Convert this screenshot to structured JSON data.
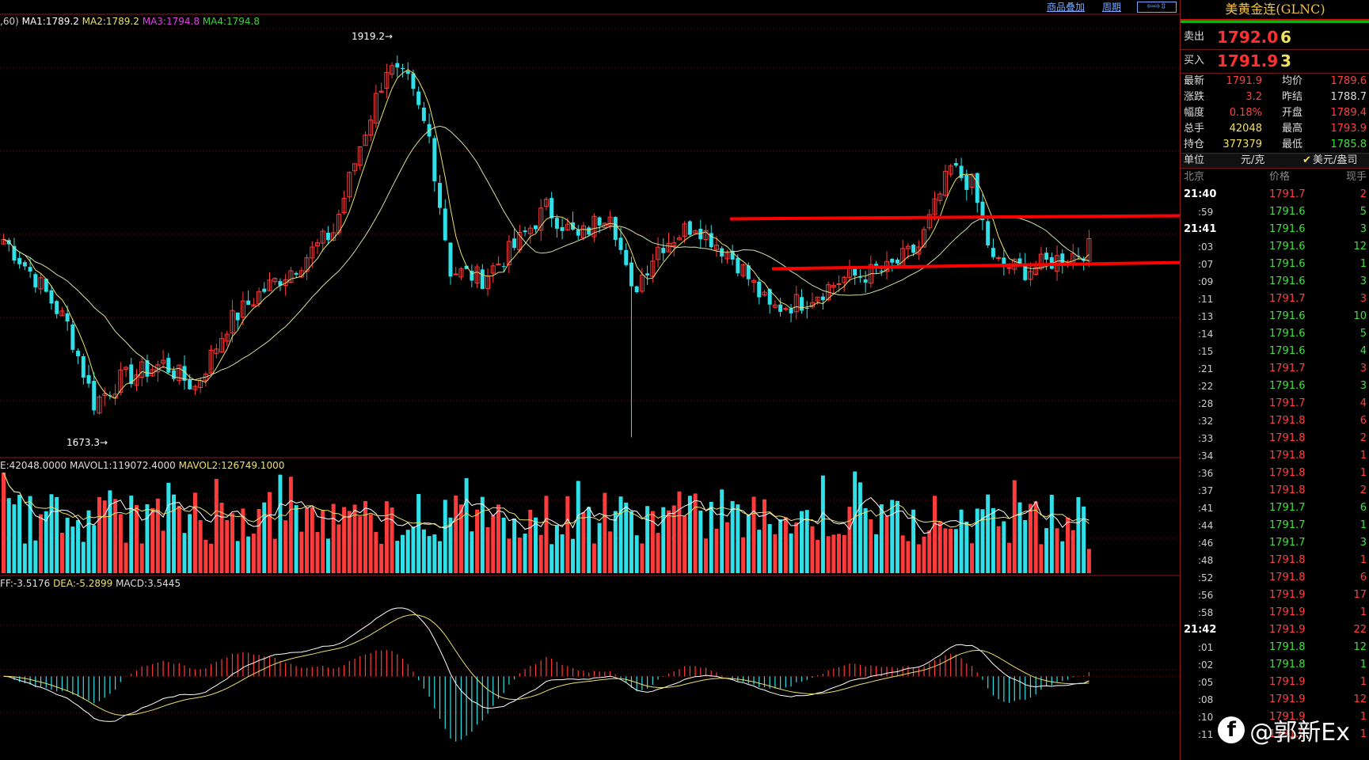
{
  "toolbar": {
    "overlay": "商品叠加",
    "period": "周期"
  },
  "legends": {
    "price": {
      "prefix": ",60)",
      "ma1": "MA1:1789.2",
      "ma2": "MA2:1789.2",
      "ma3": "MA3:1794.8",
      "ma4": "MA4:1794.8"
    },
    "volume": {
      "vol": "E:42048.0000",
      "mavol1": "MAVOL1:119072.4000",
      "mavol2": "MAVOL2:126749.1000"
    },
    "macd": {
      "diff": "FF:-3.5176",
      "dea": "DEA:-5.2899",
      "macd": "MACD:3.5445"
    }
  },
  "colors": {
    "up": "#ff3b3b",
    "down": "#30e0e8",
    "ma1": "#ffffff",
    "ma2": "#e8e070",
    "ma3": "#e040e0",
    "ma4": "#40d040",
    "trend": "#ff0000",
    "grid": "#6a1414"
  },
  "annotations": {
    "high": "1919.2",
    "low": "1673.3"
  },
  "panel": {
    "title": "美黄金连(GLNC)",
    "sell_label": "卖出",
    "sell_price": "1792.0",
    "sell_qty": "6",
    "buy_label": "买入",
    "buy_price": "1791.9",
    "buy_qty": "3",
    "stats": [
      {
        "l1": "最新",
        "v1": "1791.9",
        "c1": "#ff4040",
        "l2": "均价",
        "v2": "1789.6",
        "c2": "#ff4040"
      },
      {
        "l1": "涨跌",
        "v1": "3.2",
        "c1": "#ff4040",
        "l2": "昨结",
        "v2": "1788.7",
        "c2": "#dddddd"
      },
      {
        "l1": "幅度",
        "v1": "0.18%",
        "c1": "#ff4040",
        "l2": "开盘",
        "v2": "1789.4",
        "c2": "#ff4040"
      },
      {
        "l1": "总手",
        "v1": "42048",
        "c1": "#f0e060",
        "l2": "最高",
        "v2": "1793.9",
        "c2": "#ff4040"
      },
      {
        "l1": "持仓",
        "v1": "377379",
        "c1": "#f0e060",
        "l2": "最低",
        "v2": "1785.8",
        "c2": "#40e040"
      }
    ],
    "unit_label": "单位",
    "unit_value": "元/克",
    "unit_alt": "美元/盎司",
    "ticks_header": {
      "time": "北京",
      "price": "价格",
      "qty": "现手"
    },
    "ticks": [
      {
        "t": "21:40",
        "p": "1791.7",
        "q": "2",
        "c": "#ff4040",
        "bold": true
      },
      {
        "t": ":59",
        "p": "1791.6",
        "q": "5",
        "c": "#40e040"
      },
      {
        "t": "21:41",
        "p": "1791.6",
        "q": "3",
        "c": "#40e040",
        "bold": true
      },
      {
        "t": ":03",
        "p": "1791.6",
        "q": "12",
        "c": "#40e040"
      },
      {
        "t": ":07",
        "p": "1791.6",
        "q": "1",
        "c": "#40e040"
      },
      {
        "t": ":09",
        "p": "1791.6",
        "q": "3",
        "c": "#40e040"
      },
      {
        "t": ":11",
        "p": "1791.7",
        "q": "3",
        "c": "#ff4040"
      },
      {
        "t": ":13",
        "p": "1791.6",
        "q": "10",
        "c": "#40e040"
      },
      {
        "t": ":14",
        "p": "1791.6",
        "q": "5",
        "c": "#40e040"
      },
      {
        "t": ":15",
        "p": "1791.6",
        "q": "4",
        "c": "#40e040"
      },
      {
        "t": ":21",
        "p": "1791.7",
        "q": "3",
        "c": "#ff4040"
      },
      {
        "t": ":22",
        "p": "1791.6",
        "q": "3",
        "c": "#40e040"
      },
      {
        "t": ":28",
        "p": "1791.7",
        "q": "4",
        "c": "#ff4040"
      },
      {
        "t": ":32",
        "p": "1791.8",
        "q": "6",
        "c": "#ff4040"
      },
      {
        "t": ":33",
        "p": "1791.8",
        "q": "2",
        "c": "#ff4040"
      },
      {
        "t": ":34",
        "p": "1791.8",
        "q": "1",
        "c": "#ff4040"
      },
      {
        "t": ":36",
        "p": "1791.8",
        "q": "1",
        "c": "#ff4040"
      },
      {
        "t": ":37",
        "p": "1791.8",
        "q": "2",
        "c": "#ff4040"
      },
      {
        "t": ":41",
        "p": "1791.7",
        "q": "6",
        "c": "#40e040"
      },
      {
        "t": ":44",
        "p": "1791.7",
        "q": "1",
        "c": "#40e040"
      },
      {
        "t": ":46",
        "p": "1791.7",
        "q": "3",
        "c": "#40e040"
      },
      {
        "t": ":48",
        "p": "1791.8",
        "q": "1",
        "c": "#ff4040"
      },
      {
        "t": ":52",
        "p": "1791.8",
        "q": "6",
        "c": "#ff4040"
      },
      {
        "t": ":56",
        "p": "1791.9",
        "q": "17",
        "c": "#ff4040"
      },
      {
        "t": ":58",
        "p": "1791.9",
        "q": "1",
        "c": "#ff4040"
      },
      {
        "t": "21:42",
        "p": "1791.9",
        "q": "22",
        "c": "#ff4040",
        "bold": true
      },
      {
        "t": ":01",
        "p": "1791.8",
        "q": "12",
        "c": "#40e040"
      },
      {
        "t": ":02",
        "p": "1791.8",
        "q": "1",
        "c": "#40e040"
      },
      {
        "t": ":05",
        "p": "1791.9",
        "q": "1",
        "c": "#ff4040"
      },
      {
        "t": ":08",
        "p": "1791.9",
        "q": "12",
        "c": "#ff4040"
      },
      {
        "t": ":10",
        "p": "1791.9",
        "q": "1",
        "c": "#ff4040"
      },
      {
        "t": ":11",
        "p": "1791.9",
        "q": "1",
        "c": "#ff4040"
      }
    ]
  },
  "watermark": {
    "icon": "facebook-icon",
    "text": "@郭新Ex"
  },
  "chart_data": {
    "type": "candlestick",
    "note_series": "prices approximated from chart; trend lines drawn across resistance/support",
    "ylim": [
      1655,
      1930
    ],
    "resistance": [
      1808,
      1810
    ],
    "support": [
      1776,
      1780
    ],
    "volume_ylim": [
      0,
      170000
    ],
    "macd_ylim": [
      -42,
      48
    ]
  }
}
